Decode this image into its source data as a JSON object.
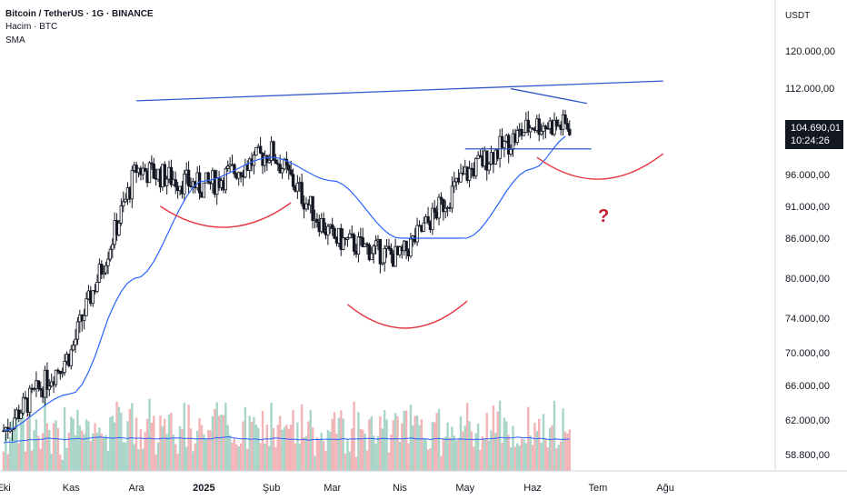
{
  "header": {
    "title": "Bitcoin / TetherUS · 1G · BINANCE",
    "volume_label": "Hacim · BTC",
    "indicator_label": "SMA"
  },
  "price_axis": {
    "currency": "USDT",
    "ticks": [
      "120.000,00",
      "112.000,00",
      "96.000,00",
      "91.000,00",
      "86.000,00",
      "80.000,00",
      "74.000,00",
      "70.000,00",
      "66.000,00",
      "62.000,00",
      "58.800,00"
    ]
  },
  "last_price_badge": {
    "price": "104.690,01",
    "countdown": "10:24:26"
  },
  "time_axis": {
    "labels": [
      "Eki",
      "Kas",
      "Ara",
      "2025",
      "Şub",
      "Mar",
      "Nis",
      "May",
      "Haz",
      "Tem",
      "Ağu"
    ],
    "bold_label": "2025"
  },
  "annotation": {
    "question_mark": "?"
  },
  "colors": {
    "candle": "#131722",
    "sma": "#2962ff",
    "trendline": "#3057c8",
    "arc": "#e53946",
    "volume_up": "#a8d5c8",
    "volume_down": "#f2b4b6",
    "question": "#c2192f"
  },
  "chart_data": {
    "type": "candlestick",
    "title": "Bitcoin / TetherUS · 1G · BINANCE",
    "xlabel": "",
    "ylabel": "USDT",
    "y_scale": "log",
    "ylim": [
      57000,
      128000
    ],
    "x_range": [
      "2024-10-01",
      "2025-08-31"
    ],
    "key_points": [
      {
        "label": "Eki",
        "date": "2024-10-01",
        "close": 61000
      },
      {
        "label": "Kas",
        "date": "2024-11-01",
        "close": 70000
      },
      {
        "label": "Ara",
        "date": "2024-12-01",
        "close": 97000
      },
      {
        "date": "2024-12-17",
        "high": 108000
      },
      {
        "label": "2025",
        "date": "2025-01-01",
        "close": 94000
      },
      {
        "date": "2025-01-20",
        "high": 109000
      },
      {
        "label": "Şub",
        "date": "2025-02-01",
        "close": 100000
      },
      {
        "label": "Mar",
        "date": "2025-03-01",
        "close": 86000
      },
      {
        "label": "Nis",
        "date": "2025-04-01",
        "close": 83000
      },
      {
        "date": "2025-04-07",
        "low": 74500
      },
      {
        "label": "May",
        "date": "2025-05-01",
        "close": 96000
      },
      {
        "date": "2025-05-22",
        "high": 111900
      },
      {
        "label": "Haz",
        "date": "2025-06-01",
        "close": 105000
      },
      {
        "date": "2025-06-18",
        "close": 104690
      }
    ],
    "sma_points": [
      {
        "date": "2024-10-01",
        "value": 61000
      },
      {
        "date": "2024-11-01",
        "value": 65000
      },
      {
        "date": "2024-12-01",
        "value": 80000
      },
      {
        "date": "2025-01-01",
        "value": 95000
      },
      {
        "date": "2025-02-01",
        "value": 99000
      },
      {
        "date": "2025-03-01",
        "value": 95000
      },
      {
        "date": "2025-04-01",
        "value": 86000
      },
      {
        "date": "2025-05-01",
        "value": 86000
      },
      {
        "date": "2025-06-01",
        "value": 97000
      },
      {
        "date": "2025-06-18",
        "value": 103000
      }
    ],
    "drawings": {
      "resistance_trendline": [
        {
          "date": "2024-12-01",
          "price": 109500
        },
        {
          "date": "2025-07-31",
          "price": 113500
        }
      ],
      "recent_down_trendline": [
        {
          "date": "2025-05-22",
          "price": 111900
        },
        {
          "date": "2025-06-26",
          "price": 109000
        }
      ],
      "neckline": [
        {
          "date": "2025-05-01",
          "price": 100500
        },
        {
          "date": "2025-06-28",
          "price": 100500
        }
      ]
    },
    "last_price": 104690.01
  }
}
